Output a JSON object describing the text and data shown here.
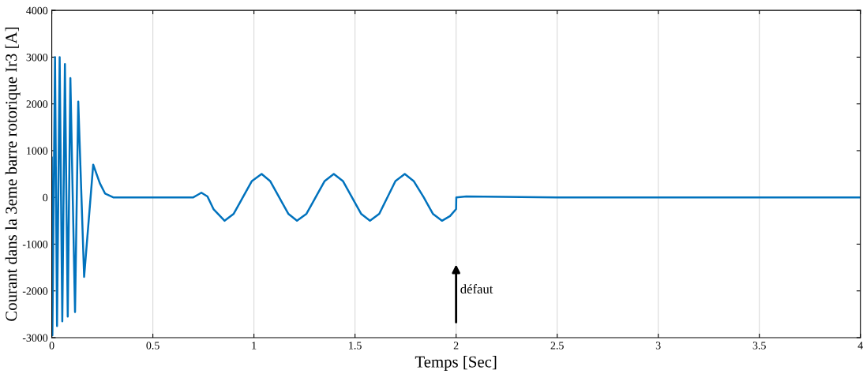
{
  "chart_data": {
    "type": "line",
    "xlabel": "Temps [Sec]",
    "ylabel": "Courant dans la 3eme barre rotorique Ir3 [A]",
    "xlim": [
      0,
      4
    ],
    "xticks": [
      0,
      0.5,
      1,
      1.5,
      2,
      2.5,
      3,
      3.5,
      4
    ],
    "ylim": [
      -3000,
      4000
    ],
    "yticks": [
      -3000,
      -2000,
      -1000,
      0,
      1000,
      2000,
      3000,
      4000
    ],
    "grid": "x",
    "series": [
      {
        "color": "#0072bd",
        "x": [
          0,
          0.003,
          0.016,
          0.026,
          0.039,
          0.052,
          0.065,
          0.079,
          0.092,
          0.115,
          0.131,
          0.16,
          0.205,
          0.238,
          0.264,
          0.304,
          0.5,
          0.7,
          0.72,
          0.74,
          0.77,
          0.8,
          0.855,
          0.9,
          0.945,
          0.99,
          1.038,
          1.08,
          1.125,
          1.17,
          1.213,
          1.26,
          1.305,
          1.35,
          1.395,
          1.44,
          1.485,
          1.53,
          1.574,
          1.62,
          1.66,
          1.7,
          1.746,
          1.79,
          1.84,
          1.885,
          1.93,
          1.97,
          2.0,
          2.001,
          2.05,
          2.5,
          3.0,
          3.5,
          4.0
        ],
        "values": [
          850,
          -2950,
          3000,
          -2750,
          3000,
          -2650,
          2850,
          -2550,
          2550,
          -2450,
          2050,
          -1700,
          700,
          300,
          80,
          0,
          0,
          0,
          50,
          100,
          20,
          -250,
          -500,
          -350,
          0,
          350,
          500,
          350,
          0,
          -350,
          -500,
          -350,
          0,
          350,
          500,
          350,
          0,
          -350,
          -500,
          -350,
          0,
          350,
          500,
          350,
          0,
          -350,
          -500,
          -400,
          -250,
          0,
          20,
          0,
          0,
          0,
          0
        ]
      }
    ],
    "annotations": [
      "défaut"
    ]
  }
}
